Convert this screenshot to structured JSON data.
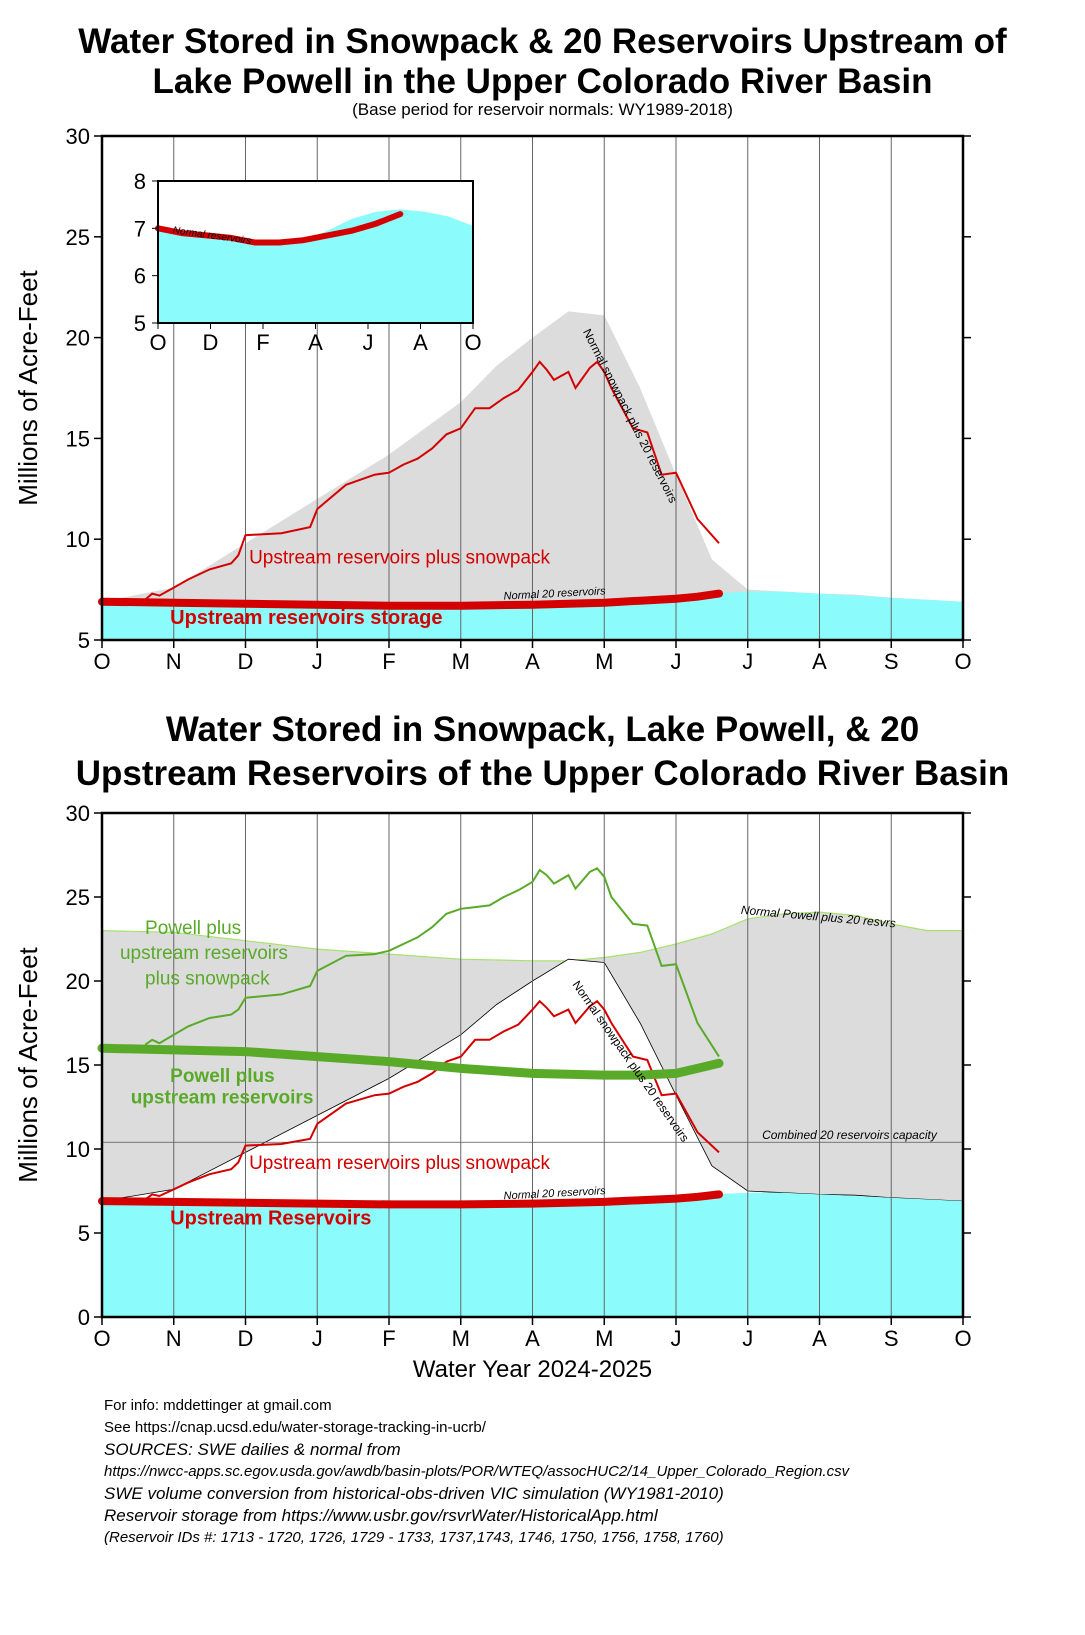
{
  "top": {
    "title_line1": "Water Stored in Snowpack & 20 Reservoirs Upstream of",
    "title_line2": "Lake Powell in the Upper Colorado River Basin",
    "subtitle": "(Base period for reservoir normals: WY1989-2018)"
  },
  "bottom": {
    "title_line1": "Water Stored in Snowpack, Lake Powell, & 20",
    "title_line2": "Upstream Reservoirs of the Upper Colorado River Basin"
  },
  "footer": {
    "info": "For info: mddettinger at gmail.com",
    "see": "See https://cnap.ucsd.edu/water-storage-tracking-in-ucrb/",
    "sources": "SOURCES: SWE dailies & normal from",
    "swe_url": "https://nwcc-apps.sc.egov.usda.gov/awdb/basin-plots/POR/WTEQ/assocHUC2/14_Upper_Colorado_Region.csv",
    "vic": "SWE volume conversion from historical-obs-driven VIC simulation (WY1981-2010)",
    "reservoir": "Reservoir storage from https://www.usbr.gov/rsvrWater/HistoricalApp.html",
    "ids": "(Reservoir IDs #: 1713 - 1720, 1726, 1729 - 1733, 1737,1743, 1746, 1750, 1756, 1758, 1760)"
  },
  "colors": {
    "reservoir": "#d40000",
    "powell": "#5aaa2a",
    "cyan_fill": "#8cfbfb",
    "gray_fill": "#dcdcdc",
    "gridline": "#666666"
  },
  "chart_data": [
    {
      "id": "top",
      "type": "area",
      "ylabel": "Millions of Acre-Feet",
      "xlabel": "",
      "month_ticks": [
        "O",
        "N",
        "D",
        "J",
        "F",
        "M",
        "A",
        "M",
        "J",
        "J",
        "A",
        "S",
        "O"
      ],
      "ylim": [
        5,
        30
      ],
      "yticks": [
        5,
        10,
        15,
        20,
        25,
        30
      ],
      "annotations": {
        "snow_res": "Upstream reservoirs plus snowpack",
        "res_storage": "Upstream reservoirs storage",
        "normal_res": "Normal 20 reservoirs",
        "normal_snow": "Normal snowpack plus 20 reservoirs"
      },
      "series": [
        {
          "name": "Normal snowpack plus 20 reservoirs",
          "x_month": [
            0,
            1,
            2,
            3,
            4,
            5,
            5.5,
            6,
            6.5,
            7,
            7.5,
            8,
            8.5,
            9,
            9.5,
            10,
            10.5,
            11,
            11.5,
            12
          ],
          "values": [
            6.9,
            7.6,
            9.8,
            12.0,
            14.2,
            16.8,
            18.6,
            20.0,
            21.3,
            21.1,
            17.5,
            13.2,
            9.0,
            7.5,
            7.4,
            7.3,
            7.25,
            7.1,
            7.0,
            6.9
          ]
        },
        {
          "name": "Normal 20 reservoirs",
          "x_month": [
            0,
            1,
            2,
            3,
            4,
            5,
            6,
            7,
            7.5,
            8,
            8.5,
            9,
            9.5,
            10,
            10.5,
            11,
            11.5,
            12
          ],
          "values": [
            6.9,
            6.85,
            6.8,
            6.7,
            6.6,
            6.6,
            6.65,
            6.8,
            6.95,
            7.1,
            7.3,
            7.4,
            7.4,
            7.3,
            7.2,
            7.1,
            7.0,
            6.9
          ]
        },
        {
          "name": "Upstream reservoirs storage",
          "x_month": [
            0,
            1,
            2,
            3,
            4,
            5,
            6,
            7,
            7.5,
            8,
            8.3,
            8.6
          ],
          "values": [
            6.9,
            6.85,
            6.8,
            6.75,
            6.7,
            6.7,
            6.75,
            6.85,
            6.95,
            7.05,
            7.15,
            7.3
          ]
        },
        {
          "name": "Upstream reservoirs plus snowpack",
          "x_month": [
            0.6,
            0.7,
            0.8,
            1.0,
            1.2,
            1.5,
            1.8,
            1.9,
            2.0,
            2.5,
            2.9,
            3.0,
            3.4,
            3.8,
            4.0,
            4.2,
            4.4,
            4.6,
            4.8,
            5.0,
            5.2,
            5.4,
            5.6,
            5.8,
            6.0,
            6.1,
            6.2,
            6.3,
            6.5,
            6.6,
            6.8,
            6.9,
            7.0,
            7.1,
            7.4,
            7.6,
            7.8,
            8.0,
            8.3,
            8.6
          ],
          "values": [
            7.0,
            7.3,
            7.2,
            7.6,
            8.0,
            8.5,
            8.8,
            9.2,
            10.2,
            10.3,
            10.6,
            11.5,
            12.7,
            13.2,
            13.3,
            13.7,
            14.0,
            14.5,
            15.2,
            15.5,
            16.5,
            16.5,
            17.0,
            17.4,
            18.3,
            18.8,
            18.4,
            17.9,
            18.3,
            17.5,
            18.5,
            18.8,
            18.3,
            17.5,
            15.5,
            15.3,
            13.2,
            13.3,
            11.0,
            9.8
          ]
        }
      ],
      "inset": {
        "ylim": [
          5,
          8
        ],
        "yticks": [
          5,
          6,
          7,
          8
        ],
        "month_ticks": [
          "O",
          "D",
          "F",
          "A",
          "J",
          "A",
          "O"
        ],
        "label": "Normal reservoirs",
        "normal": [
          7.0,
          6.95,
          6.85,
          6.75,
          6.65,
          6.65,
          6.75,
          6.95,
          7.2,
          7.35,
          7.4,
          7.35,
          7.25,
          7.05
        ],
        "current": [
          7.0,
          6.9,
          6.85,
          6.8,
          6.7,
          6.7,
          6.75,
          6.85,
          6.95,
          7.1,
          7.3
        ]
      }
    },
    {
      "id": "bottom",
      "type": "area",
      "ylabel": "Millions of Acre-Feet",
      "xlabel": "Water Year 2024-2025",
      "month_ticks": [
        "O",
        "N",
        "D",
        "J",
        "F",
        "M",
        "A",
        "M",
        "J",
        "J",
        "A",
        "S",
        "O"
      ],
      "ylim": [
        0,
        30
      ],
      "yticks": [
        0,
        5,
        10,
        15,
        20,
        25,
        30
      ],
      "annotations": {
        "powell_snow_1": "Powell plus",
        "powell_snow_2": "upstream reservoirs",
        "powell_snow_3": "plus snowpack",
        "powell_res_1": "Powell plus",
        "powell_res_2": "upstream reservoirs",
        "snow_res": "Upstream reservoirs plus snowpack",
        "res": "Upstream Reservoirs",
        "normal_res": "Normal 20 reservoirs",
        "normal_snow": "Normal snowpack plus 20 reservoirs",
        "normal_powell": "Normal Powell plus 20 resvrs",
        "capacity": "Combined 20 reservoirs capacity"
      },
      "capacity": 10.4,
      "series": [
        {
          "name": "Normal Powell plus 20 resvrs",
          "x_month": [
            0,
            1,
            2,
            3,
            4,
            5,
            6,
            6.5,
            7,
            7.5,
            8,
            8.5,
            9,
            9.5,
            10,
            10.5,
            11,
            11.5,
            12
          ],
          "values": [
            23.0,
            22.9,
            22.4,
            21.9,
            21.6,
            21.3,
            21.2,
            21.2,
            21.4,
            21.7,
            22.2,
            22.8,
            23.7,
            24.0,
            24.1,
            23.9,
            23.4,
            23.0,
            23.0
          ]
        },
        {
          "name": "Powell plus upstream reservoirs",
          "x_month": [
            0,
            1,
            2,
            3,
            4,
            5,
            6,
            7,
            7.5,
            8,
            8.3,
            8.6
          ],
          "values": [
            16.0,
            15.9,
            15.8,
            15.5,
            15.2,
            14.8,
            14.5,
            14.4,
            14.4,
            14.5,
            14.8,
            15.1
          ]
        },
        {
          "name": "Powell plus upstream reservoirs plus snowpack",
          "x_month": [
            0.6,
            0.7,
            0.8,
            1.0,
            1.2,
            1.5,
            1.8,
            1.9,
            2.0,
            2.5,
            2.9,
            3.0,
            3.4,
            3.8,
            4.0,
            4.2,
            4.4,
            4.6,
            4.8,
            5.0,
            5.2,
            5.4,
            5.6,
            5.8,
            6.0,
            6.1,
            6.2,
            6.3,
            6.5,
            6.6,
            6.8,
            6.9,
            7.0,
            7.1,
            7.4,
            7.6,
            7.8,
            8.0,
            8.3,
            8.6
          ],
          "values": [
            16.2,
            16.5,
            16.3,
            16.8,
            17.3,
            17.8,
            18.0,
            18.3,
            19.0,
            19.2,
            19.7,
            20.6,
            21.5,
            21.6,
            21.8,
            22.2,
            22.6,
            23.2,
            24.0,
            24.3,
            24.4,
            24.5,
            25.0,
            25.4,
            25.9,
            26.6,
            26.3,
            25.8,
            26.3,
            25.5,
            26.5,
            26.7,
            26.2,
            25.0,
            23.4,
            23.3,
            20.9,
            21.0,
            17.5,
            15.5
          ]
        }
      ]
    }
  ]
}
